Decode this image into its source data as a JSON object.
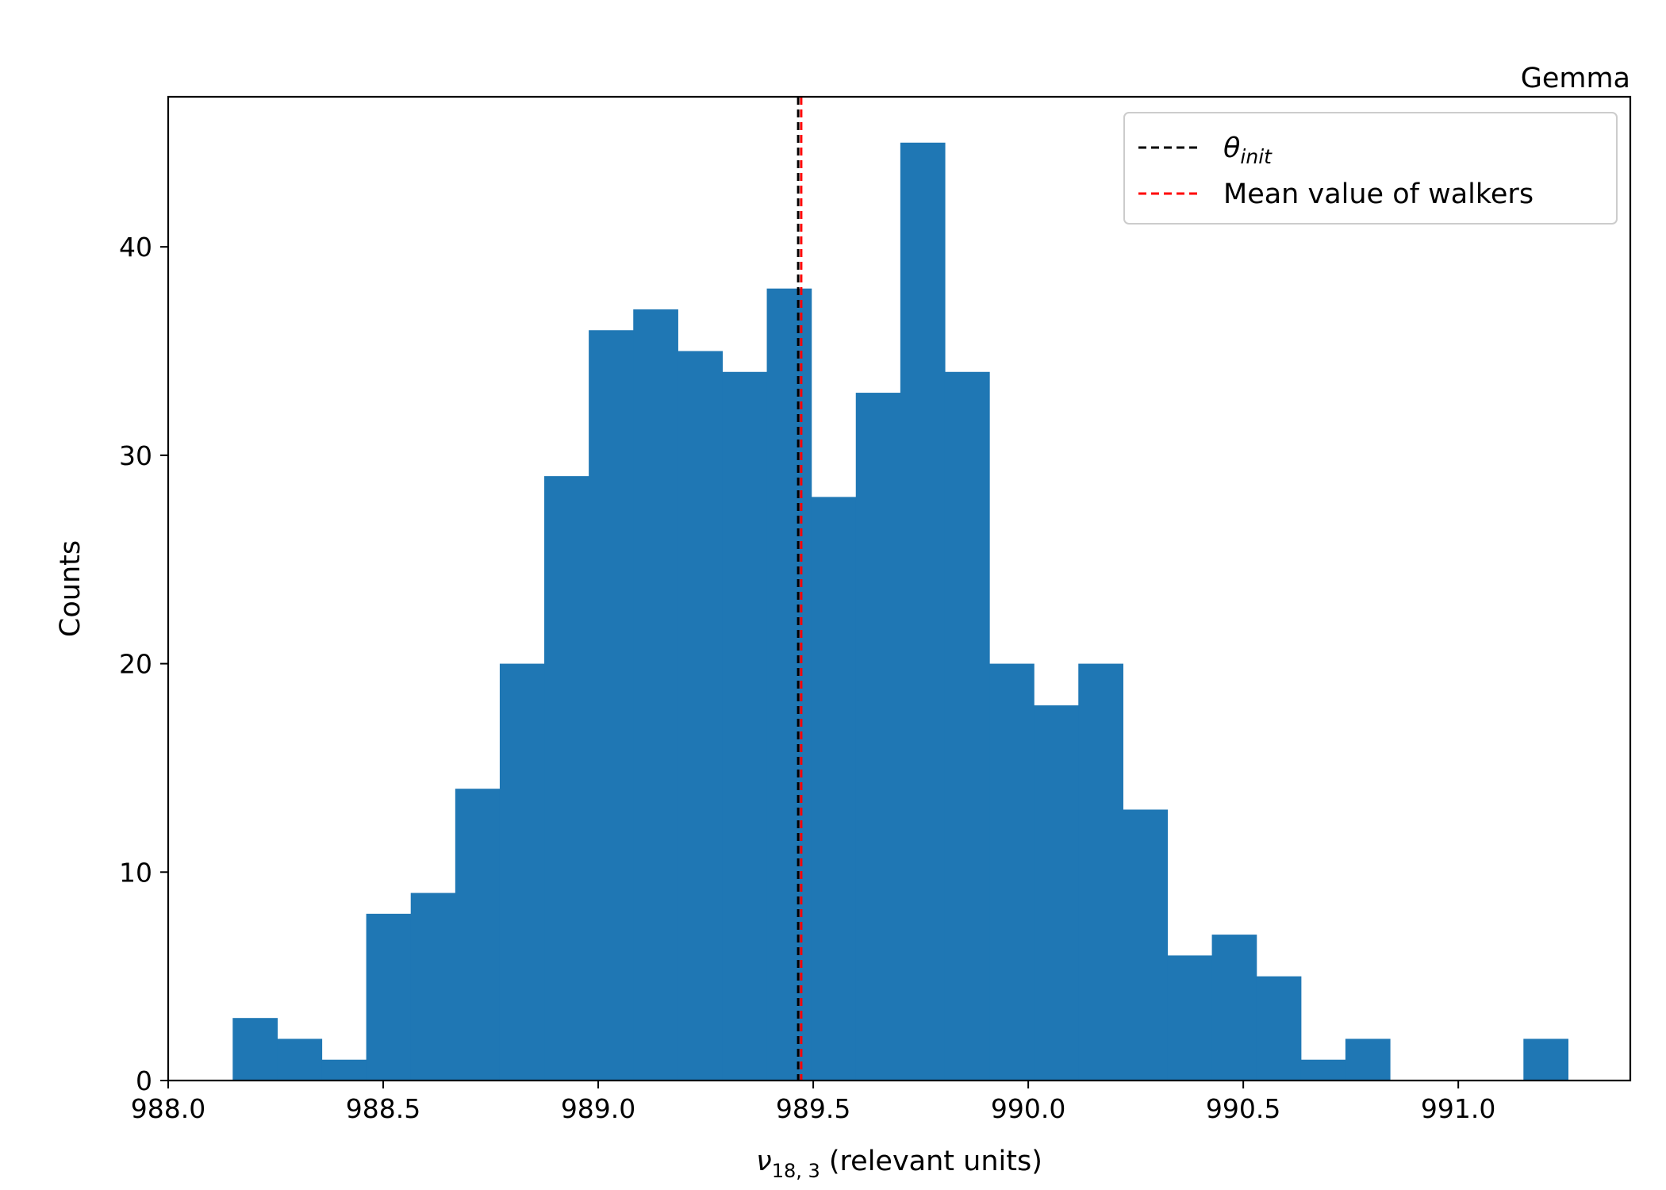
{
  "chart_data": {
    "type": "bar",
    "subtype": "histogram",
    "title": "Gemma",
    "xlabel": {
      "symbol": "ν",
      "subscript": "18, 3",
      "text": " (relevant units)"
    },
    "ylabel": "Counts",
    "xlim": [
      988.0,
      991.4
    ],
    "ylim": [
      0,
      47.2
    ],
    "xticks": [
      988.0,
      988.5,
      989.0,
      989.5,
      990.0,
      990.5,
      991.0
    ],
    "xtick_labels": [
      "988.0",
      "988.5",
      "989.0",
      "989.5",
      "990.0",
      "990.5",
      "991.0"
    ],
    "yticks": [
      0,
      10,
      20,
      30,
      40
    ],
    "ytick_labels": [
      "0",
      "10",
      "20",
      "30",
      "40"
    ],
    "bin_start": 988.15,
    "bin_width": 0.1035,
    "counts": [
      3,
      2,
      1,
      8,
      9,
      14,
      20,
      29,
      36,
      37,
      35,
      34,
      38,
      28,
      33,
      45,
      34,
      20,
      18,
      20,
      13,
      6,
      7,
      5,
      1,
      2,
      0,
      0,
      0,
      2
    ],
    "bar_color": "#1f77b4",
    "grid": false,
    "vlines": [
      {
        "name": "θ_init",
        "x": 989.465,
        "color": "#000000",
        "style": "dashed"
      },
      {
        "name": "Mean value of walkers",
        "x": 989.472,
        "color": "#ff0000",
        "style": "dashed"
      }
    ],
    "legend": {
      "position": "top-right",
      "entries": [
        {
          "symbol": "θ",
          "subscript": "init",
          "color": "#000000",
          "style": "dashed"
        },
        {
          "label": "Mean value of walkers",
          "color": "#ff0000",
          "style": "dashed"
        }
      ]
    }
  }
}
